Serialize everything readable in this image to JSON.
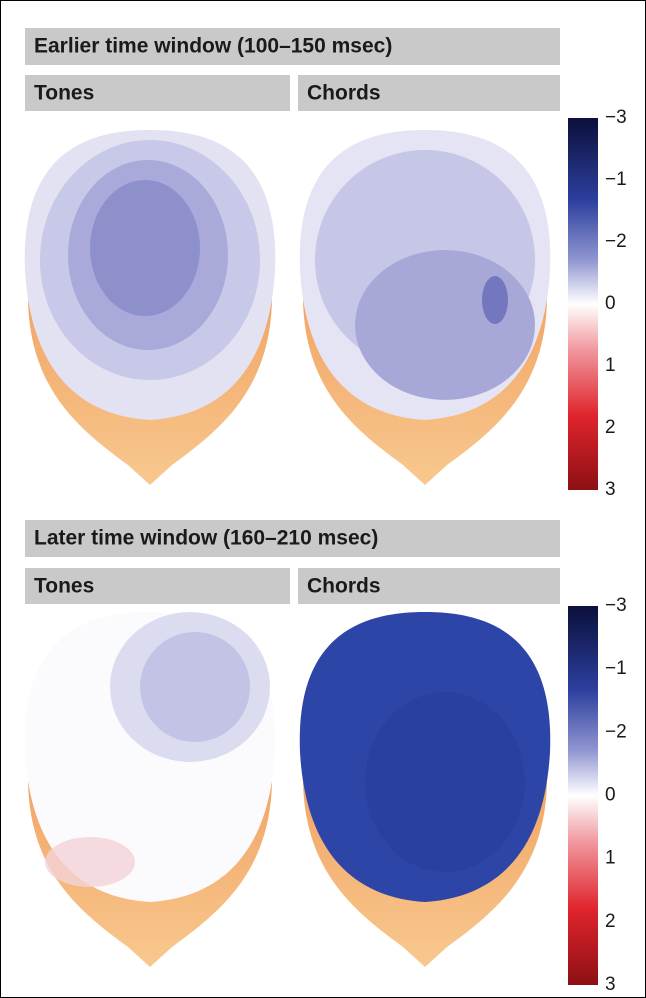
{
  "panels": [
    {
      "title": "Earlier time window (100–150 msec)",
      "columns": [
        "Tones",
        "Chords"
      ],
      "colorbar_labels": [
        "−3",
        "−1",
        "−2",
        "0",
        "1",
        "2",
        "3"
      ]
    },
    {
      "title": "Later time window (160–210 msec)",
      "columns": [
        "Tones",
        "Chords"
      ],
      "colorbar_labels": [
        "−3",
        "−1",
        "−2",
        "0",
        "1",
        "2",
        "3"
      ]
    }
  ]
}
